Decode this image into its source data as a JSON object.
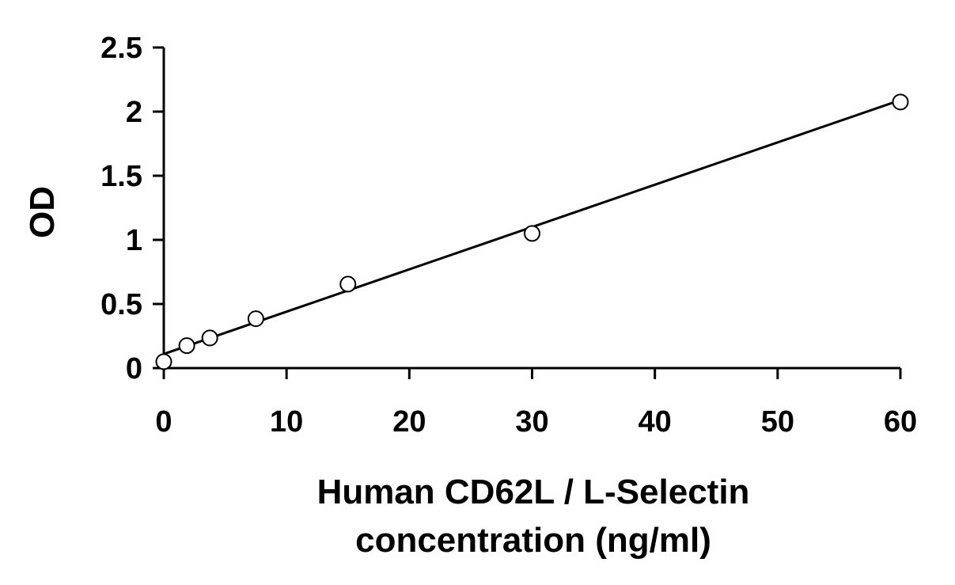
{
  "chart_data": {
    "type": "scatter",
    "title": "",
    "xlabel_lines": [
      "Human CD62L / L-Selectin",
      "concentration (ng/ml)"
    ],
    "ylabel": "OD",
    "xlim": [
      0,
      60
    ],
    "ylim": [
      0,
      2.5
    ],
    "x_ticks": [
      0,
      10,
      20,
      30,
      40,
      50,
      60
    ],
    "x_tick_labels": [
      "0",
      "10",
      "20",
      "30",
      "40",
      "50",
      "60"
    ],
    "y_ticks": [
      0,
      0.5,
      1,
      1.5,
      2,
      2.5
    ],
    "y_tick_labels": [
      "0",
      "0.5",
      "1",
      "1.5",
      "2",
      "2.5"
    ],
    "grid": false,
    "series": [
      {
        "x": [
          0,
          1.875,
          3.75,
          7.5,
          15,
          30,
          60
        ],
        "y": [
          0.05,
          0.175,
          0.235,
          0.385,
          0.655,
          1.05,
          2.075
        ],
        "marker": "open-circle"
      }
    ],
    "trendline": {
      "type": "linear",
      "x": [
        0,
        60
      ],
      "y": [
        0.11,
        2.09
      ]
    },
    "colors": {
      "marker_stroke": "#000000",
      "marker_fill": "#ffffff",
      "line": "#000000",
      "axis": "#000000"
    }
  }
}
